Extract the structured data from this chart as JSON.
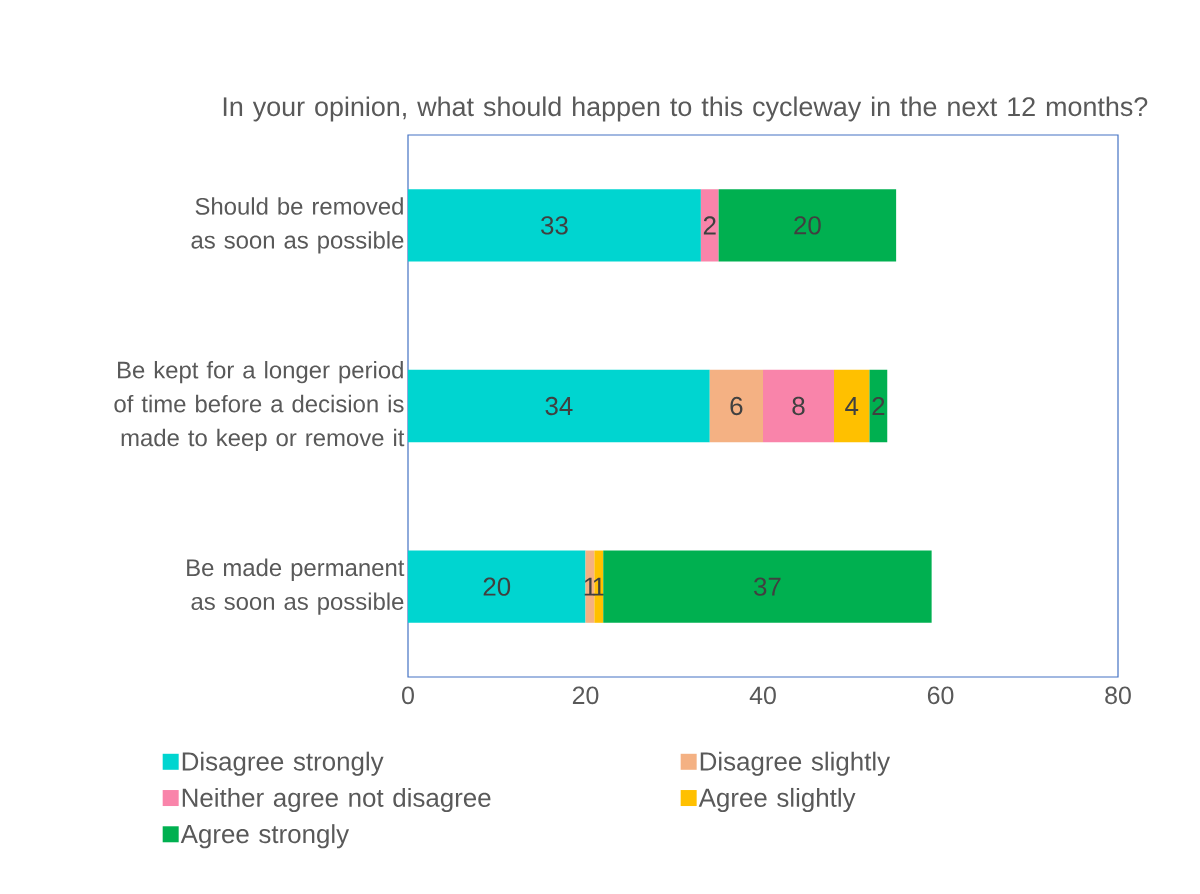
{
  "chart_data": {
    "type": "bar",
    "orientation": "horizontal",
    "stacked": true,
    "title": "In your opinion, what should happen to this cycleway in the next 12 months?",
    "categories": [
      "Should be removed as soon as possible",
      "Be kept for a longer period of time before a decision is made to keep or remove it",
      "Be made permanent as soon as possible"
    ],
    "series": [
      {
        "name": "Disagree strongly",
        "color": "#00d5d0",
        "values": [
          33,
          34,
          20
        ]
      },
      {
        "name": "Disagree slightly",
        "color": "#f4b183",
        "values": [
          null,
          6,
          1
        ]
      },
      {
        "name": "Neither agree not disagree",
        "color": "#f984aa",
        "values": [
          2,
          8,
          null
        ]
      },
      {
        "name": "Agree slightly",
        "color": "#ffc000",
        "values": [
          null,
          4,
          1
        ]
      },
      {
        "name": "Agree strongly",
        "color": "#00b050",
        "values": [
          20,
          2,
          37
        ]
      }
    ],
    "xlim": [
      0,
      80
    ],
    "xticks": [
      0,
      20,
      40,
      60,
      80
    ],
    "data_labels": true,
    "legend": "bottom"
  }
}
